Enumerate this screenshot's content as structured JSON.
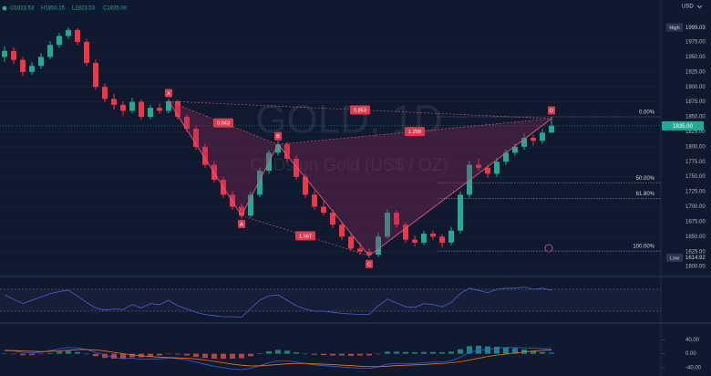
{
  "chart_data": [
    {
      "type": "candlestick",
      "header": [
        "O1823.53",
        "H1850.15",
        "L1823.53",
        "C1835.00"
      ],
      "currency": "USD",
      "watermark_title": "GOLD, 1D",
      "watermark_subtitle": "CFDs on Gold (US$ / OZ)",
      "up_color": "#22ab94",
      "down_color": "#f23645",
      "ohlc": [
        [
          1950,
          1968,
          1942,
          1960
        ],
        [
          1960,
          1966,
          1938,
          1945
        ],
        [
          1945,
          1950,
          1918,
          1925
        ],
        [
          1925,
          1942,
          1920,
          1935
        ],
        [
          1935,
          1956,
          1930,
          1950
        ],
        [
          1950,
          1976,
          1946,
          1970
        ],
        [
          1970,
          1990,
          1965,
          1985
        ],
        [
          1985,
          1999.03,
          1980,
          1995
        ],
        [
          1995,
          1998,
          1970,
          1975
        ],
        [
          1975,
          1980,
          1935,
          1940
        ],
        [
          1940,
          1945,
          1895,
          1900
        ],
        [
          1900,
          1906,
          1875,
          1880
        ],
        [
          1880,
          1888,
          1862,
          1870
        ],
        [
          1870,
          1876,
          1852,
          1860
        ],
        [
          1860,
          1882,
          1856,
          1875
        ],
        [
          1875,
          1879,
          1845,
          1850
        ],
        [
          1850,
          1870,
          1846,
          1865
        ],
        [
          1865,
          1872,
          1855,
          1860
        ],
        [
          1860,
          1880,
          1856,
          1876
        ],
        [
          1876,
          1878,
          1845,
          1850
        ],
        [
          1850,
          1854,
          1825,
          1830
        ],
        [
          1830,
          1835,
          1795,
          1800
        ],
        [
          1800,
          1805,
          1765,
          1770
        ],
        [
          1770,
          1776,
          1740,
          1745
        ],
        [
          1745,
          1750,
          1715,
          1720
        ],
        [
          1720,
          1726,
          1695,
          1700
        ],
        [
          1700,
          1706,
          1680,
          1685
        ],
        [
          1685,
          1725,
          1682,
          1720
        ],
        [
          1720,
          1765,
          1716,
          1760
        ],
        [
          1760,
          1795,
          1755,
          1790
        ],
        [
          1790,
          1810,
          1785,
          1804
        ],
        [
          1804,
          1808,
          1775,
          1780
        ],
        [
          1780,
          1785,
          1745,
          1750
        ],
        [
          1750,
          1755,
          1715,
          1720
        ],
        [
          1720,
          1726,
          1695,
          1700
        ],
        [
          1700,
          1710,
          1685,
          1690
        ],
        [
          1690,
          1695,
          1665,
          1670
        ],
        [
          1670,
          1676,
          1645,
          1650
        ],
        [
          1650,
          1655,
          1626,
          1630
        ],
        [
          1630,
          1640,
          1620,
          1625
        ],
        [
          1625,
          1630,
          1614.92,
          1620
        ],
        [
          1620,
          1656,
          1616,
          1650
        ],
        [
          1650,
          1695,
          1646,
          1690
        ],
        [
          1690,
          1694,
          1665,
          1670
        ],
        [
          1670,
          1674,
          1640,
          1645
        ],
        [
          1645,
          1652,
          1634,
          1640
        ],
        [
          1640,
          1660,
          1636,
          1655
        ],
        [
          1655,
          1660,
          1645,
          1650
        ],
        [
          1650,
          1654,
          1632,
          1640
        ],
        [
          1640,
          1666,
          1636,
          1660
        ],
        [
          1660,
          1725,
          1655,
          1720
        ],
        [
          1720,
          1776,
          1715,
          1770
        ],
        [
          1770,
          1780,
          1760,
          1765
        ],
        [
          1765,
          1770,
          1748,
          1755
        ],
        [
          1755,
          1782,
          1750,
          1775
        ],
        [
          1775,
          1796,
          1770,
          1790
        ],
        [
          1790,
          1806,
          1785,
          1800
        ],
        [
          1800,
          1822,
          1795,
          1815
        ],
        [
          1815,
          1820,
          1802,
          1810
        ],
        [
          1810,
          1830,
          1805,
          1823.53
        ],
        [
          1823.53,
          1850.15,
          1823.53,
          1835
        ]
      ],
      "ylim": [
        1588,
        2045
      ],
      "yticks": [
        {
          "value": 1600,
          "label": "1600.00"
        },
        {
          "value": 1625,
          "label": "1625.00"
        },
        {
          "value": 1650,
          "label": "1650.00"
        },
        {
          "value": 1675,
          "label": "1675.00"
        },
        {
          "value": 1700,
          "label": "1700.00"
        },
        {
          "value": 1725,
          "label": "1725.00"
        },
        {
          "value": 1750,
          "label": "1750.00"
        },
        {
          "value": 1775,
          "label": "1775.00"
        },
        {
          "value": 1800,
          "label": "1800.00"
        },
        {
          "value": 1825,
          "label": "1825.00"
        },
        {
          "value": 1850,
          "label": "1850.00"
        },
        {
          "value": 1875,
          "label": "1875.00"
        },
        {
          "value": 1900,
          "label": "1900.00"
        },
        {
          "value": 1925,
          "label": "1925.00"
        },
        {
          "value": 1950,
          "label": "1950.00"
        },
        {
          "value": 1975,
          "label": "1975.00"
        }
      ],
      "high": {
        "label": "High",
        "value": 1999.03
      },
      "low": {
        "label": "Low",
        "value": 1614.92
      },
      "last_price_label": "1835.00",
      "pattern": {
        "color": "#e8567a",
        "points": [
          {
            "label": "X",
            "x": 18,
            "y": 1876
          },
          {
            "label": "A",
            "x": 26,
            "y": 1685
          },
          {
            "label": "B",
            "x": 30,
            "y": 1804
          },
          {
            "label": "C",
            "x": 40,
            "y": 1618
          },
          {
            "label": "D",
            "x": 60,
            "y": 1847
          }
        ],
        "ratios": [
          0.643,
          0.853,
          1.209,
          1.567
        ]
      },
      "fib": [
        {
          "label": "0.00%",
          "price": 1850
        },
        {
          "label": "50.00%",
          "price": 1740
        },
        {
          "label": "61.80%",
          "price": 1714
        },
        {
          "label": "100.00%",
          "price": 1626
        }
      ]
    },
    {
      "type": "line",
      "color": "#4a5fd6",
      "ylim": [
        10,
        90
      ],
      "levels": [
        70,
        30
      ],
      "values": [
        60,
        52,
        44,
        50,
        56,
        62,
        66,
        68,
        58,
        46,
        36,
        32,
        34,
        33,
        42,
        36,
        44,
        42,
        50,
        40,
        34,
        28,
        24,
        22,
        20,
        20,
        19,
        35,
        50,
        58,
        60,
        50,
        40,
        34,
        30,
        30,
        28,
        26,
        25,
        24,
        24,
        40,
        52,
        45,
        38,
        37,
        44,
        42,
        38,
        46,
        62,
        72,
        68,
        64,
        70,
        72,
        72,
        74,
        70,
        72,
        68
      ]
    },
    {
      "type": "macd",
      "ylim": [
        -64,
        83
      ],
      "yticks": [
        {
          "value": 40,
          "label": "40.00"
        },
        {
          "value": 0,
          "label": "0.00"
        },
        {
          "value": -40,
          "label": "-40.00"
        }
      ],
      "macd": {
        "color": "#2962ff",
        "values": [
          10,
          8,
          4,
          3,
          5,
          9,
          14,
          18,
          17,
          12,
          4,
          -4,
          -10,
          -14,
          -13,
          -16,
          -15,
          -15,
          -12,
          -14,
          -18,
          -24,
          -30,
          -36,
          -40,
          -44,
          -46,
          -42,
          -34,
          -26,
          -20,
          -20,
          -24,
          -28,
          -32,
          -34,
          -36,
          -38,
          -40,
          -41,
          -42,
          -38,
          -30,
          -28,
          -28,
          -28,
          -26,
          -24,
          -24,
          -20,
          -10,
          4,
          10,
          13,
          16,
          18,
          18,
          17,
          16,
          15,
          14
        ]
      },
      "signal": {
        "color": "#ff6d00",
        "values": [
          9,
          9,
          8,
          7,
          6,
          7,
          8,
          10,
          12,
          12,
          11,
          8,
          4,
          0,
          -3,
          -6,
          -8,
          -10,
          -11,
          -12,
          -13,
          -15,
          -18,
          -22,
          -26,
          -30,
          -33,
          -35,
          -35,
          -33,
          -31,
          -29,
          -28,
          -28,
          -29,
          -30,
          -31,
          -33,
          -34,
          -36,
          -37,
          -37,
          -36,
          -34,
          -33,
          -32,
          -31,
          -29,
          -28,
          -26,
          -23,
          -18,
          -13,
          -8,
          -4,
          -1,
          2,
          5,
          8,
          10,
          11
        ]
      },
      "histogram": {
        "up_color": "#26a69a",
        "down_color": "#ef5350",
        "values": [
          1,
          -1,
          -4,
          -4,
          -1,
          2,
          6,
          8,
          5,
          0,
          -7,
          -12,
          -14,
          -14,
          -10,
          -10,
          -7,
          -5,
          -1,
          -2,
          -5,
          -9,
          -12,
          -14,
          -14,
          -14,
          -13,
          -7,
          1,
          7,
          11,
          9,
          4,
          0,
          -3,
          -4,
          -5,
          -5,
          -6,
          -5,
          -5,
          -1,
          6,
          6,
          5,
          4,
          5,
          5,
          4,
          6,
          13,
          22,
          23,
          21,
          20,
          19,
          16,
          12,
          8,
          5,
          3
        ]
      }
    }
  ]
}
